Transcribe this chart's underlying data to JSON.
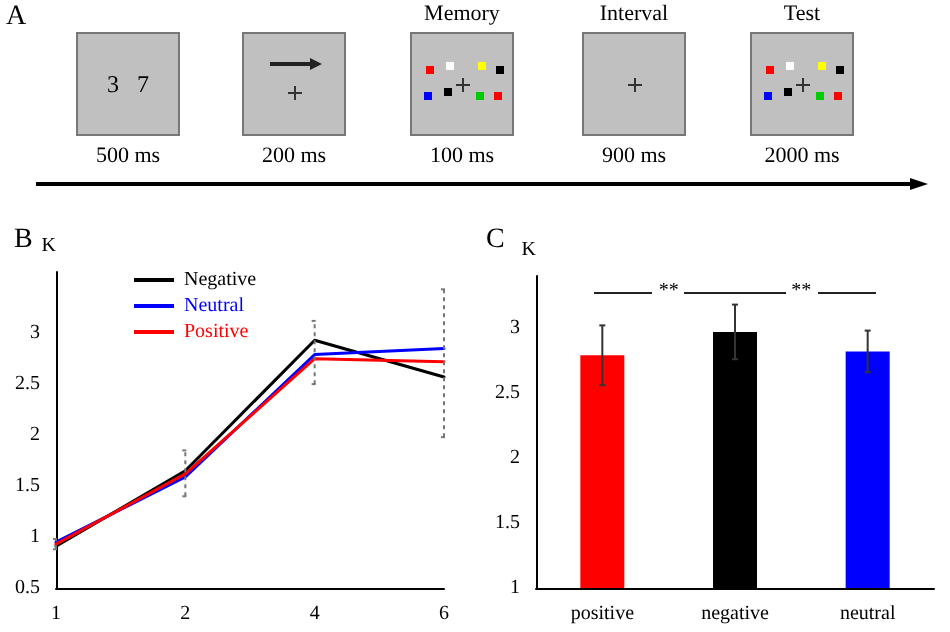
{
  "chart_data": [
    {
      "type": "other",
      "title": "A",
      "annotations": [
        "3   7",
        "Memory",
        "Interval",
        "Test",
        "500 ms",
        "200 ms",
        "100 ms",
        "900 ms",
        "2000 ms"
      ]
    },
    {
      "type": "line",
      "title": "B",
      "ylabel": "K",
      "categories": [
        "1",
        "2",
        "4",
        "6"
      ],
      "ylim": [
        0.5,
        3.6
      ],
      "yticks": [
        0.5,
        1,
        1.5,
        2,
        2.5,
        3
      ],
      "legend": "top left",
      "grid": false,
      "marker": "none",
      "line_style": "solid",
      "series": [
        {
          "name": "Negative",
          "color": "#000000",
          "values": [
            0.91,
            1.65,
            2.93,
            2.57
          ],
          "errors": [
            [
              0.88,
              0.98
            ],
            [
              1.4,
              1.85
            ],
            [
              2.5,
              3.12
            ],
            [
              1.98,
              3.43
            ]
          ]
        },
        {
          "name": "Neutral",
          "color": "#0000ff",
          "values": [
            0.95,
            1.59,
            2.79,
            2.85
          ]
        },
        {
          "name": "Positive",
          "color": "#ff0000",
          "values": [
            0.93,
            1.62,
            2.75,
            2.72
          ]
        }
      ]
    },
    {
      "type": "bar",
      "title": "C",
      "ylabel": "K",
      "categories": [
        "positive",
        "negative",
        "neutral"
      ],
      "ylim": [
        1,
        3.4
      ],
      "yticks": [
        1,
        1.5,
        2,
        2.5,
        3
      ],
      "grid": false,
      "legend": false,
      "values": [
        2.79,
        2.97,
        2.82
      ],
      "colors": [
        "#ff0000",
        "#000000",
        "#0000ff"
      ],
      "errors": [
        0.23,
        0.21,
        0.16
      ],
      "annotations": [
        "**",
        "**"
      ]
    }
  ]
}
